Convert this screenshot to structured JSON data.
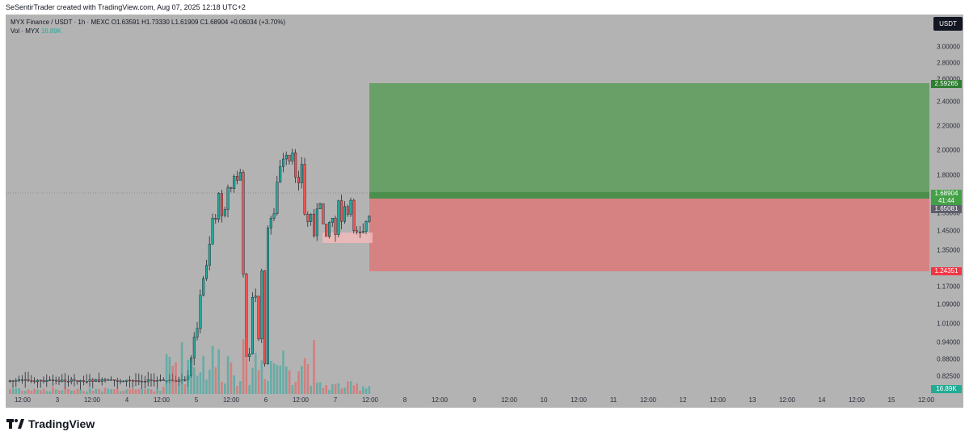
{
  "header": {
    "credit": "SeSentirTrader created with TradingView.com, Aug 07, 2025 12:18 UTC+2"
  },
  "legend": {
    "symbol_line": "MYX Finance / USDT · 1h · MEXC  O1.63591  H1.73330  L1.61909  C1.68904  +0.06034 (+3.70%)",
    "vol_label": "Vol · MYX",
    "vol_value": "16.89K"
  },
  "price_scale": {
    "unit_button": "USDT",
    "ticks": [
      "3.00000",
      "2.80000",
      "2.60000",
      "2.40000",
      "2.20000",
      "2.00000",
      "1.80000",
      "1.55000",
      "1.45000",
      "1.35000",
      "1.17000",
      "1.09000",
      "1.01000",
      "0.94000",
      "0.88000",
      "0.82500"
    ],
    "tags": {
      "target": "2.59265",
      "current": "1.68904",
      "countdown": "41:44",
      "entry": "1.65081",
      "stop": "1.24351",
      "volume": "16.89K"
    }
  },
  "time_axis": {
    "labels": [
      "12:00",
      "3",
      "12:00",
      "4",
      "12:00",
      "5",
      "12:00",
      "6",
      "12:00",
      "7",
      "12:00",
      "8",
      "12:00",
      "9",
      "12:00",
      "10",
      "12:00",
      "11",
      "12:00",
      "12",
      "12:00",
      "13",
      "12:00",
      "14",
      "12:00",
      "15",
      "12:00"
    ]
  },
  "position_tool": {
    "type": "long",
    "target_price": 2.59265,
    "entry_price": 1.65081,
    "stop_price": 1.24351
  },
  "footer": {
    "brand": "TradingView"
  },
  "colors": {
    "background": "#b3b3b3",
    "up": "#26a69a",
    "down": "#ef5350",
    "profit_zone": "#5f9d5f",
    "loss_zone": "#d98080",
    "target_tag": "#2e7d32",
    "stop_tag": "#f23645",
    "volume_tag": "#22ab94"
  }
}
